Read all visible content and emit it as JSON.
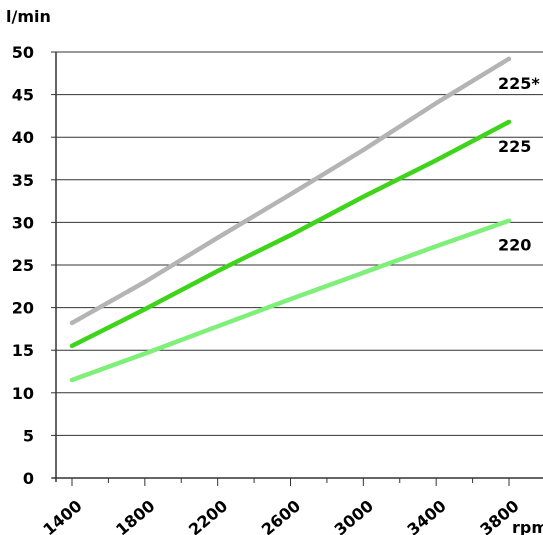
{
  "chart_data": {
    "type": "line",
    "ylabel": "l/min",
    "xlabel": "rpm",
    "xlim": [
      1400,
      3800
    ],
    "ylim": [
      0,
      50
    ],
    "x_ticks": [
      1400,
      1800,
      2200,
      2600,
      3000,
      3400,
      3800
    ],
    "y_ticks": [
      0,
      5,
      10,
      15,
      20,
      25,
      30,
      35,
      40,
      45,
      50
    ],
    "grid": "horizontal",
    "series": [
      {
        "name": "225*",
        "color": "#b4b4b4",
        "x": [
          1400,
          1800,
          2200,
          2600,
          3000,
          3400,
          3800
        ],
        "y": [
          18.2,
          23.0,
          28.2,
          33.3,
          38.5,
          44.0,
          49.2
        ]
      },
      {
        "name": "225",
        "color": "#3dd41a",
        "x": [
          1400,
          1800,
          2200,
          2600,
          3000,
          3400,
          3800
        ],
        "y": [
          15.5,
          19.8,
          24.3,
          28.5,
          33.0,
          37.3,
          41.8
        ]
      },
      {
        "name": "220",
        "color": "#7ef07a",
        "x": [
          1400,
          1800,
          2200,
          2600,
          3000,
          3400,
          3800
        ],
        "y": [
          11.5,
          14.6,
          17.8,
          21.0,
          24.1,
          27.2,
          30.2
        ]
      }
    ]
  }
}
